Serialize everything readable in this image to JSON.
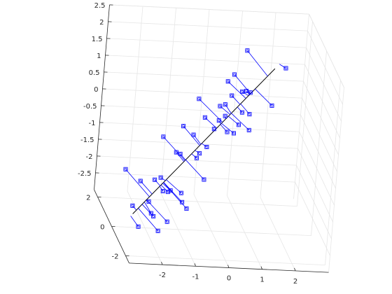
{
  "chart_data": {
    "type": "scatter",
    "projection": "3d",
    "grid": true,
    "box": "back-planes",
    "colors": {
      "points": "#0000ff",
      "residuals": "#0000ff",
      "fit_line": "#000000",
      "grid": "#e6e6e6",
      "axes": "#262626"
    },
    "xlim": [
      -3,
      3
    ],
    "ylim": [
      -2.5,
      2.5
    ],
    "zlim": [
      -3,
      2.5
    ],
    "x_ticks": [
      "-2",
      "-1",
      "0",
      "1",
      "2"
    ],
    "y_ticks": [
      "-2",
      "0",
      "2"
    ],
    "z_ticks": [
      "-2.5",
      "-2",
      "-1.5",
      "-1",
      "-0.5",
      "0",
      "0.5",
      "1",
      "1.5",
      "2",
      "2.5"
    ],
    "fit_line": {
      "from": [
        -2.4,
        0,
        -2.6
      ],
      "to": [
        1.5,
        0,
        1.9
      ]
    },
    "points": [
      [
        -2.6,
        0.5,
        -1.5
      ],
      [
        -2.2,
        0.2,
        -1.7
      ],
      [
        -2.4,
        0.1,
        -2.4
      ],
      [
        -2.3,
        -0.4,
        -2.8
      ],
      [
        -1.9,
        0.2,
        -2.3
      ],
      [
        -1.8,
        -0.1,
        -2.6
      ],
      [
        -1.7,
        -0.4,
        -2.9
      ],
      [
        -1.4,
        -0.2,
        -2.7
      ],
      [
        -2.0,
        -0.6,
        -2.3
      ],
      [
        -1.8,
        0.1,
        -1.6
      ],
      [
        -1.6,
        -0.2,
        -1.8
      ],
      [
        -1.4,
        0.0,
        -1.9
      ],
      [
        -1.7,
        -0.2,
        -1.4
      ],
      [
        -1.3,
        0.1,
        -1.9
      ],
      [
        -1.0,
        -0.2,
        -2.1
      ],
      [
        -0.9,
        -0.4,
        -2.2
      ],
      [
        -0.95,
        0.2,
        -2.0
      ],
      [
        -1.6,
        0.3,
        -0.4
      ],
      [
        -1.2,
        0.2,
        -0.8
      ],
      [
        -1.1,
        0.1,
        -0.8
      ],
      [
        -0.6,
        0.1,
        -0.9
      ],
      [
        -0.4,
        -0.2,
        -1.4
      ],
      [
        -1.0,
        0.4,
        -0.1
      ],
      [
        -0.7,
        0.3,
        -0.3
      ],
      [
        -0.3,
        0.2,
        -0.6
      ],
      [
        -0.5,
        0.2,
        -0.8
      ],
      [
        -0.5,
        -0.1,
        0.4
      ],
      [
        -0.1,
        0.3,
        -0.1
      ],
      [
        0.0,
        0.2,
        0.2
      ],
      [
        0.2,
        0.3,
        0.3
      ],
      [
        0.6,
        0.2,
        0.1
      ],
      [
        0.2,
        -0.1,
        0.0
      ],
      [
        0.5,
        0.3,
        -0.2
      ],
      [
        0.9,
        0.1,
        0.0
      ],
      [
        0.6,
        -0.1,
        0.6
      ],
      [
        0.8,
        -0.2,
        0.6
      ],
      [
        -0.7,
        0.0,
        0.9
      ],
      [
        -0.1,
        -0.2,
        0.8
      ],
      [
        0.2,
        0.4,
        0.6
      ],
      [
        0.3,
        0.1,
        1.0
      ],
      [
        0.7,
        0.0,
        1.2
      ],
      [
        0.1,
        -0.1,
        1.5
      ],
      [
        0.5,
        -0.3,
        1.3
      ],
      [
        1.5,
        0.0,
        0.8
      ],
      [
        0.4,
        0.4,
        1.5
      ],
      [
        0.8,
        -0.1,
        1.2
      ],
      [
        0.8,
        0.7,
        2.1
      ],
      [
        1.9,
        0.3,
        1.8
      ]
    ]
  }
}
